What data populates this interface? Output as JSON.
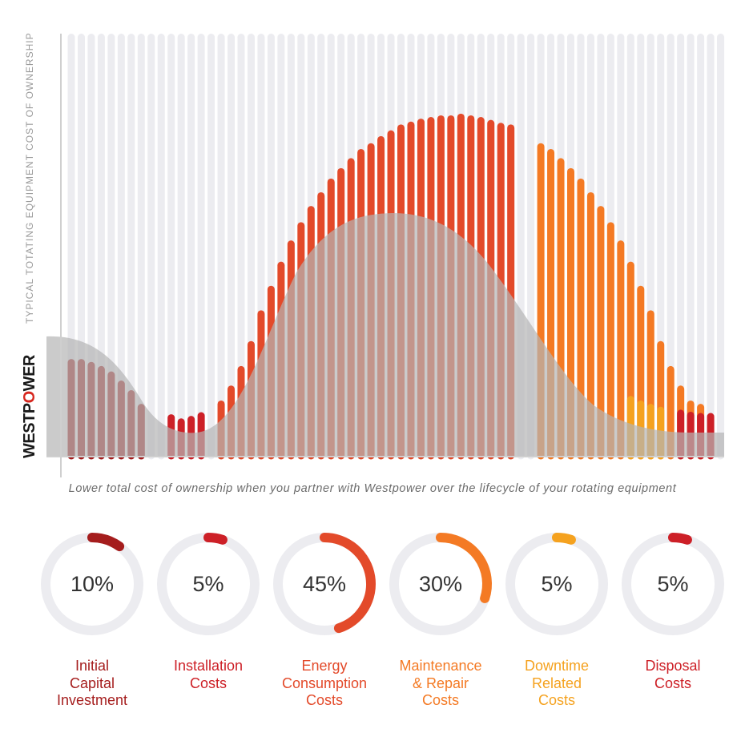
{
  "brand": {
    "logo_parts": [
      "WESTP",
      "O",
      "WER"
    ],
    "color_text": "#1a1a1a",
    "color_accent": "#d7261e"
  },
  "chart_data": [
    {
      "type": "bar",
      "title": "",
      "xlabel": "",
      "ylabel": "TYPICAL TOTATING EQUIPMENT COST OF OWNERSHIP",
      "ylim": [
        0,
        100
      ],
      "grid": true,
      "caption": "Lower total cost of ownership when you partner with Westpower over the lifecycle of your rotating equipment",
      "groups": [
        {
          "name": "Initial Capital Investment",
          "color": "#a51d1d",
          "values": [
            23.3,
            23.3,
            22.6,
            21.6,
            20.3,
            18.1,
            15.8,
            12.5
          ]
        },
        {
          "name": "Installation Costs",
          "color": "#cd2027",
          "values": [
            10.0,
            9.0,
            9.6,
            10.5
          ]
        },
        {
          "name": "Energy Consumption Costs",
          "color": "#e34a2a",
          "values": [
            13.3,
            16.9,
            21.6,
            27.6,
            35.0,
            40.9,
            46.7,
            51.8,
            56.2,
            60.1,
            63.4,
            66.7,
            69.2,
            71.6,
            73.8,
            75.2,
            76.9,
            78.3,
            79.7,
            80.4,
            81.1,
            81.5,
            81.9,
            81.9,
            82.3,
            81.9,
            81.5,
            80.8,
            80.1,
            79.7
          ]
        },
        {
          "name": "Maintenance & Repair Costs",
          "color": "#f47a24",
          "values": [
            75.2,
            73.8,
            71.6,
            69.2,
            66.7,
            63.4,
            60.1,
            56.2,
            51.8,
            46.7,
            40.9,
            35.0,
            27.6,
            21.6,
            16.9,
            13.3,
            12.5
          ]
        },
        {
          "name": "Downtime Related Costs",
          "color": "#f5a21f",
          "values": [
            14.4,
            13.3,
            12.5,
            11.8
          ]
        },
        {
          "name": "Disposal Costs",
          "color": "#cd2027",
          "values": [
            11.1,
            10.6,
            10.3,
            10.3
          ]
        }
      ],
      "area_curve": {
        "color": "#b5b5b5",
        "opacity": 0.7
      }
    },
    {
      "type": "pie",
      "title": "",
      "categories": [
        "Initial Capital Investment",
        "Installation Costs",
        "Energy Consumption Costs",
        "Maintenance & Repair Costs",
        "Downtime Related Costs",
        "Disposal Costs"
      ],
      "label_lines": [
        [
          "Initial",
          "Capital",
          "Investment"
        ],
        [
          "Installation",
          "Costs"
        ],
        [
          "Energy",
          "Consumption",
          "Costs"
        ],
        [
          "Maintenance",
          "& Repair",
          "Costs"
        ],
        [
          "Downtime",
          "Related",
          "Costs"
        ],
        [
          "Disposal",
          "Costs"
        ]
      ],
      "values": [
        10,
        5,
        45,
        30,
        5,
        5
      ],
      "value_labels": [
        "10%",
        "5%",
        "45%",
        "30%",
        "5%",
        "5%"
      ],
      "colors": [
        "#a51d1d",
        "#cd2027",
        "#e34a2a",
        "#f47a24",
        "#f5a21f",
        "#cd2027"
      ],
      "track_color": "#ececf0"
    }
  ]
}
